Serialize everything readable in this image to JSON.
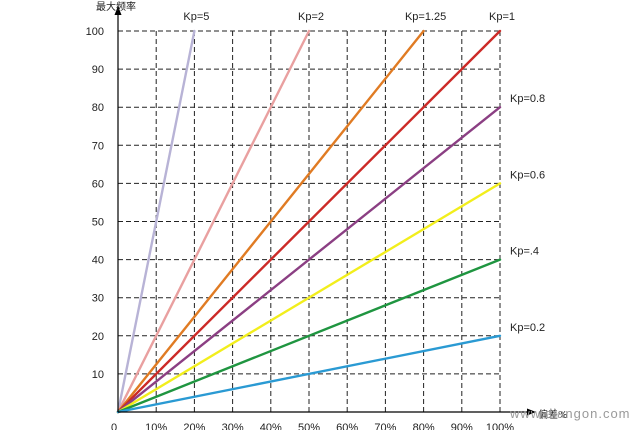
{
  "chart_data": {
    "type": "line",
    "ylabel": "最大频率",
    "xlabel": "偏差%",
    "x_ticks": [
      "0",
      "10%",
      "20%",
      "30%",
      "40%",
      "50%",
      "60%",
      "70%",
      "80%",
      "90%",
      "100%"
    ],
    "y_ticks": [
      "10",
      "20",
      "30",
      "40",
      "50",
      "60",
      "70",
      "80",
      "90",
      "100"
    ],
    "xlim": [
      0,
      100
    ],
    "ylim": [
      0,
      100
    ],
    "grid": true,
    "series": [
      {
        "name": "Kp=5",
        "kp": 5,
        "color": "#b8b3d6",
        "x": [
          0,
          20
        ],
        "y": [
          0,
          100
        ]
      },
      {
        "name": "Kp=2",
        "kp": 2,
        "color": "#e9a0a0",
        "x": [
          0,
          50
        ],
        "y": [
          0,
          100
        ]
      },
      {
        "name": "Kp=1.25",
        "kp": 1.25,
        "color": "#e07b23",
        "x": [
          0,
          80
        ],
        "y": [
          0,
          100
        ]
      },
      {
        "name": "Kp=1",
        "kp": 1,
        "color": "#cc2a27",
        "x": [
          0,
          100
        ],
        "y": [
          0,
          100
        ]
      },
      {
        "name": "Kp=0.8",
        "kp": 0.8,
        "color": "#8b3f83",
        "x": [
          0,
          100
        ],
        "y": [
          0,
          80
        ]
      },
      {
        "name": "Kp=0.6",
        "kp": 0.6,
        "color": "#f2ee1c",
        "x": [
          0,
          100
        ],
        "y": [
          0,
          60
        ]
      },
      {
        "name": "Kp=.4",
        "kp": 0.4,
        "color": "#1f9540",
        "x": [
          0,
          100
        ],
        "y": [
          0,
          40
        ]
      },
      {
        "name": "Kp=0.2",
        "kp": 0.2,
        "color": "#2a9ad3",
        "x": [
          0,
          100
        ],
        "y": [
          0,
          20
        ]
      }
    ]
  },
  "watermark": "www.diangon.com"
}
